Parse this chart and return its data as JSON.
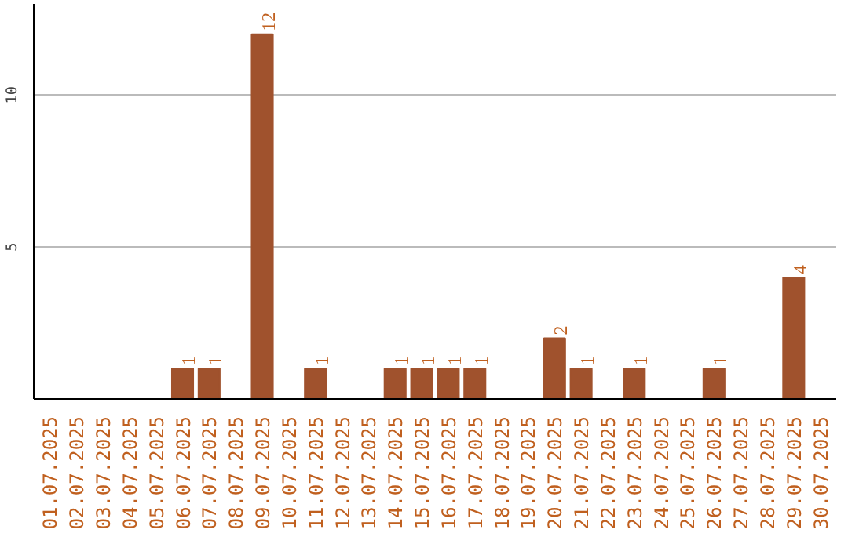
{
  "chart_data": {
    "type": "bar",
    "categories": [
      "01.07.2025",
      "02.07.2025",
      "03.07.2025",
      "04.07.2025",
      "05.07.2025",
      "06.07.2025",
      "07.07.2025",
      "08.07.2025",
      "09.07.2025",
      "10.07.2025",
      "11.07.2025",
      "12.07.2025",
      "13.07.2025",
      "14.07.2025",
      "15.07.2025",
      "16.07.2025",
      "17.07.2025",
      "18.07.2025",
      "19.07.2025",
      "20.07.2025",
      "21.07.2025",
      "22.07.2025",
      "23.07.2025",
      "24.07.2025",
      "25.07.2025",
      "26.07.2025",
      "27.07.2025",
      "28.07.2025",
      "29.07.2025",
      "30.07.2025"
    ],
    "values": [
      0,
      0,
      0,
      0,
      0,
      1,
      1,
      0,
      12,
      0,
      1,
      0,
      0,
      1,
      1,
      1,
      1,
      0,
      0,
      2,
      1,
      0,
      1,
      0,
      0,
      1,
      0,
      0,
      4,
      0
    ],
    "value_labels": [
      null,
      null,
      null,
      null,
      null,
      "1",
      "1",
      null,
      "12",
      null,
      "1",
      null,
      null,
      "1",
      "1",
      "1",
      "1",
      null,
      null,
      "2",
      "1",
      null,
      "1",
      null,
      null,
      "1",
      null,
      null,
      "4",
      null
    ],
    "color": "#a0522d",
    "ylim": [
      0,
      13
    ],
    "yticks": [
      5,
      10
    ],
    "grid": "y"
  }
}
